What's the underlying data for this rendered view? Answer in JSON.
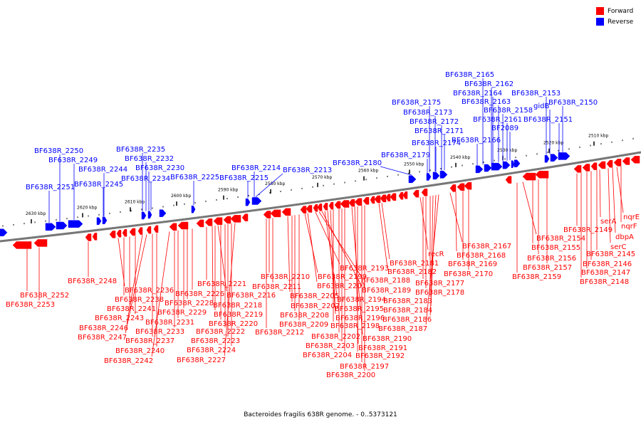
{
  "legend": {
    "forward_label": "Forward",
    "reverse_label": "Reverse",
    "forward_color": "#ff0000",
    "reverse_color": "#0000ff"
  },
  "caption": "Bacteroides fragilis 638R genome. - 0..5373121",
  "ticks": [
    "2630 kbp",
    "2620 kbp",
    "2610 kbp",
    "2600 kbp",
    "2590 kbp",
    "2580 kbp",
    "2570 kbp",
    "2560 kbp",
    "2550 kbp",
    "2540 kbp",
    "2530 kbp",
    "2520 kbp",
    "2510 kbp"
  ],
  "reverse_labels": [
    "BF638R_2251",
    "BF638R_2250",
    "BF638R_2249",
    "BF638R_2245",
    "BF638R_2244",
    "BF638R_2235",
    "BF638R_2232",
    "BF638R_2234",
    "BF638R_2230",
    "BF638R_2225",
    "BF638R_2215",
    "BF638R_2214",
    "BF638R_2213",
    "BF638R_2180",
    "BF638R_2179",
    "BF638R_2175",
    "BF638R_2173",
    "BF638R_2174",
    "BF638R_2172",
    "BF638R_2171",
    "BF638R_2166",
    "BF638R_2165",
    "BF638R_2162",
    "BF638R_2164",
    "BF638R_2163",
    "BF638R_2158",
    "BF638R_2161",
    "BF2089",
    "BF638R_2153",
    "gidB",
    "BF638R_2150",
    "BF638R_2151"
  ],
  "forward_labels": [
    "BF638R_2252",
    "BF638R_2253",
    "BF638R_2248",
    "BF638R_2236",
    "BF638R_2238",
    "BF638R_2241",
    "BF638R_2243",
    "BF638R_2246",
    "BF638R_2247",
    "BF638R_2237",
    "BF638R_2240",
    "BF638R_2242",
    "BF638R_2233",
    "BF638R_2231",
    "BF638R_2229",
    "BF638R_2228",
    "BF638R_2226",
    "BF638R_2221",
    "BF638R_2216",
    "BF638R_2218",
    "BF638R_2219",
    "BF638R_2220",
    "BF638R_2222",
    "BF638R_2223",
    "BF638R_2224",
    "BF638R_2227",
    "BF638R_2212",
    "BF638R_2210",
    "BF638R_2211",
    "BF638R_2205",
    "BF638R_2207",
    "BF638R_2208",
    "BF638R_2209",
    "BF638R_2199",
    "BF638R_2201",
    "BF638R_2193",
    "BF638R_2188",
    "BF638R_2189",
    "BF638R_2194",
    "BF638R_2195",
    "BF638R_2196",
    "BF638R_2198",
    "BF638R_2202",
    "BF638R_2203",
    "BF638R_2204",
    "BF638R_2190",
    "BF638R_2191",
    "BF638R_2192",
    "BF638R_2197",
    "BF638R_2200",
    "BF638R_2182",
    "BF638R_2181",
    "recR",
    "BF638R_2177",
    "BF638R_2178",
    "BF638R_2183",
    "BF638R_2184",
    "BF638R_2186",
    "BF638R_2187",
    "BF638R_2167",
    "BF638R_2168",
    "BF638R_2169",
    "BF638R_2170",
    "BF638R_2154",
    "BF638R_2155",
    "BF638R_2156",
    "BF638R_2157",
    "BF638R_2159",
    "BF638R_2149",
    "serA",
    "nqrE",
    "nqrF",
    "dbpA",
    "serC",
    "BF638R_2145",
    "BF638R_2146",
    "BF638R_2147",
    "BF638R_2148"
  ]
}
